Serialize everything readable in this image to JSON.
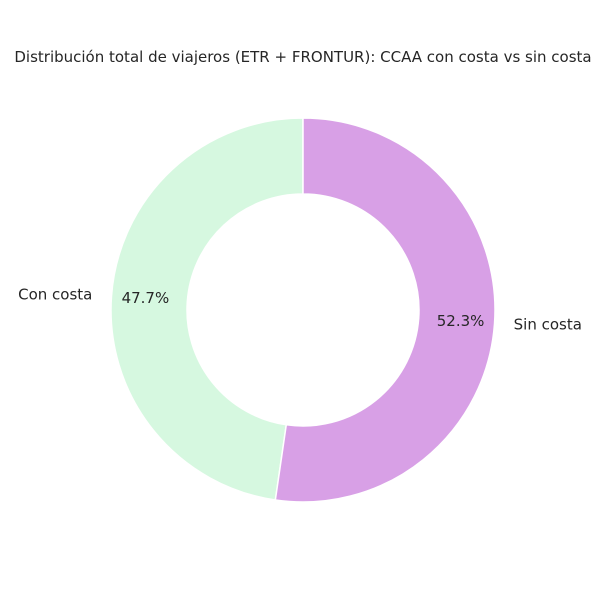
{
  "chart_data": {
    "type": "pie",
    "variant": "donut",
    "title": "Distribución total de viajeros (ETR + FRONTUR): CCAA con costa vs sin costa",
    "start_angle_deg": 90,
    "direction": "counterclockwise",
    "slices": [
      {
        "label": "Con costa",
        "value": 47.7,
        "pct_label": "47.7%",
        "color": "#d6f8e0"
      },
      {
        "label": "Sin costa",
        "value": 52.3,
        "pct_label": "52.3%",
        "color": "#d8a0e6"
      }
    ],
    "edge_color": "#ffffff",
    "legend": "none"
  }
}
